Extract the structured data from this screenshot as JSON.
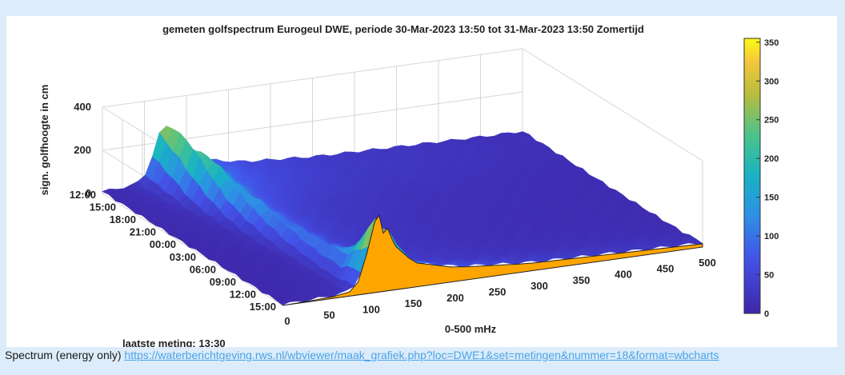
{
  "caption": {
    "label": "Spectrum (energy only)",
    "link_text": "https://waterberichtgeving.rws.nl/wbviewer/maak_grafiek.php?loc=DWE1&set=metingen&nummer=18&format=wbcharts"
  },
  "colors": {
    "background": "#dcecfa",
    "latest_measurement_fill": "#ffa500",
    "link": "#4aa3e8"
  },
  "chart_data": {
    "type": "surface3d",
    "title": "gemeten golfspectrum Eurogeul DWE, periode 30-Mar-2023 13:50 tot 31-Mar-2023 13:50 Zomertijd",
    "xlabel": "0-500 mHz",
    "ylabel": "",
    "zlabel": "sign. golfhoogte in cm",
    "annotation": "laatste meting: 13:30",
    "x_ticks": [
      "0",
      "50",
      "100",
      "150",
      "200",
      "250",
      "300",
      "350",
      "400",
      "450",
      "500"
    ],
    "y_ticks": [
      "12:00",
      "15:00",
      "18:00",
      "21:00",
      "00:00",
      "03:00",
      "06:00",
      "09:00",
      "12:00",
      "15:00"
    ],
    "z_ticks": [
      "0",
      "200",
      "400"
    ],
    "zlim": [
      0,
      400
    ],
    "colorbar": {
      "ticks": [
        "0",
        "50",
        "100",
        "150",
        "200",
        "250",
        "300",
        "350"
      ],
      "range": [
        0,
        355
      ]
    },
    "grid": true,
    "latest_spectrum": {
      "freq_mhz": [
        0,
        30,
        60,
        80,
        90,
        100,
        110,
        115,
        120,
        125,
        130,
        135,
        140,
        150,
        160,
        170,
        180,
        190,
        200,
        220,
        250,
        280,
        300,
        350,
        400,
        450,
        500
      ],
      "height_cm": [
        0,
        3,
        8,
        20,
        60,
        180,
        330,
        355,
        270,
        290,
        240,
        200,
        180,
        140,
        110,
        100,
        90,
        80,
        70,
        60,
        50,
        40,
        35,
        30,
        25,
        20,
        15
      ]
    },
    "time_profile_cm": [
      {
        "time": "15:00",
        "peak": 355
      },
      {
        "time": "12:00",
        "peak": 150
      },
      {
        "time": "09:00",
        "peak": 110
      },
      {
        "time": "06:00",
        "peak": 100
      },
      {
        "time": "03:00",
        "peak": 110
      },
      {
        "time": "00:00",
        "peak": 130
      },
      {
        "time": "21:00",
        "peak": 160
      },
      {
        "time": "18:00",
        "peak": 220
      },
      {
        "time": "15:00",
        "peak": 270
      },
      {
        "time": "12:00",
        "peak": 280
      }
    ]
  }
}
